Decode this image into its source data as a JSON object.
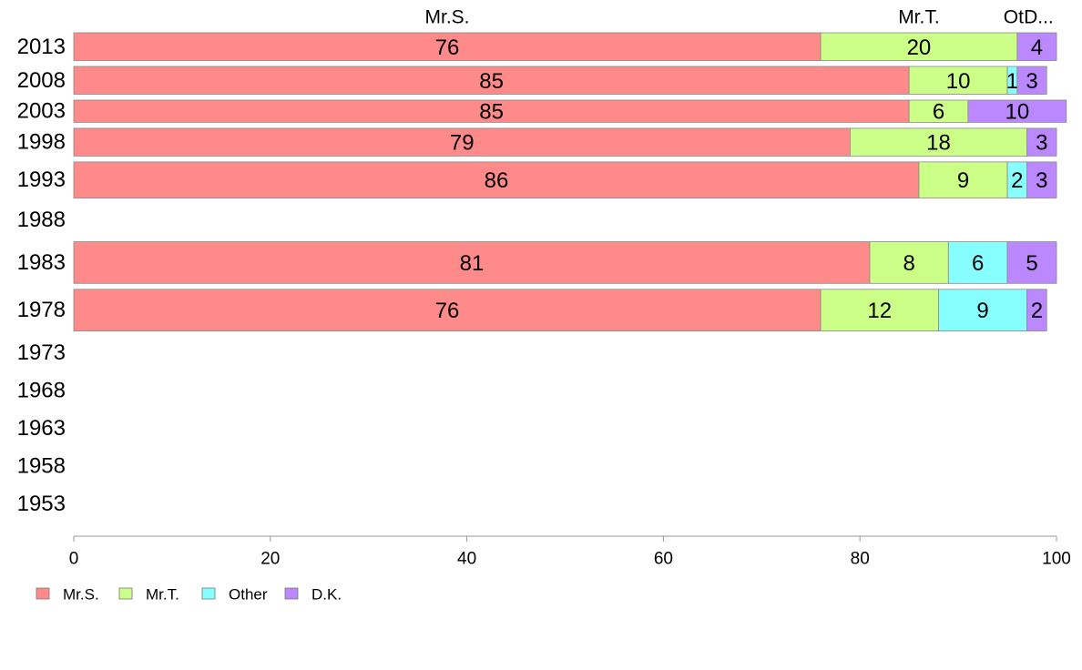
{
  "chart_data": {
    "type": "bar",
    "orientation": "horizontal",
    "stacked": true,
    "categories": [
      "2013",
      "2008",
      "2003",
      "1998",
      "1993",
      "1988",
      "1983",
      "1978",
      "1973",
      "1968",
      "1963",
      "1958",
      "1953"
    ],
    "series": [
      {
        "name": "Mr.S.",
        "color": "#ff8a8a",
        "values": [
          76,
          85,
          85,
          79,
          86,
          null,
          81,
          76,
          null,
          null,
          null,
          null,
          null
        ]
      },
      {
        "name": "Mr.T.",
        "color": "#ccff88",
        "values": [
          20,
          10,
          6,
          18,
          9,
          null,
          8,
          12,
          null,
          null,
          null,
          null,
          null
        ]
      },
      {
        "name": "Other",
        "color": "#88ffff",
        "values": [
          0,
          1,
          0,
          0,
          2,
          null,
          6,
          9,
          null,
          null,
          null,
          null,
          null
        ]
      },
      {
        "name": "D.K.",
        "color": "#bb88ff",
        "values": [
          4,
          3,
          10,
          3,
          3,
          null,
          5,
          2,
          null,
          null,
          null,
          null,
          null
        ]
      }
    ],
    "bar_relative_size": [
      1.0,
      1.0,
      0.8,
      1.0,
      1.3,
      0,
      1.5,
      1.5,
      0,
      0,
      0,
      0,
      0
    ],
    "top_labels": [
      "Mr.S.",
      "Mr.T.",
      "Ot",
      "D..."
    ],
    "xlim": [
      0,
      100
    ],
    "xticks": [
      0,
      20,
      40,
      60,
      80,
      100
    ],
    "legend_position": "bottom-left",
    "grid": false
  }
}
